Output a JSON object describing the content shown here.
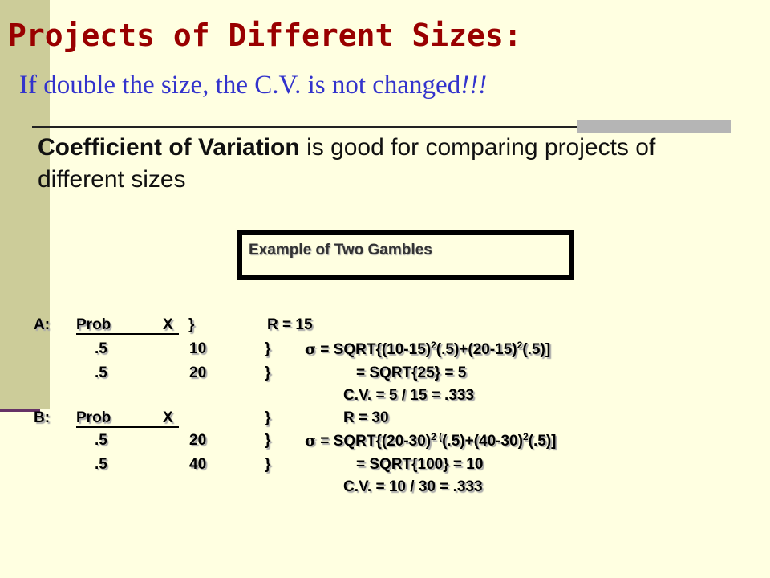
{
  "title": "Projects of Different Sizes:",
  "subtitle": {
    "text": "If double the size, the C.V. is not changed",
    "emphasis": "!!!"
  },
  "body": {
    "bold": "Coefficient of Variation",
    "rest": "is good for comparing projects of different sizes"
  },
  "box_label": "Example of Two Gambles",
  "gambles": [
    {
      "label": "A:",
      "header": {
        "prob": "Prob",
        "x": "X",
        "brace": "}",
        "result": "R = 15"
      },
      "outcomes": [
        {
          "prob": ".5",
          "x": "10",
          "brace": "}",
          "sigma": "σ",
          "formula": [
            "= SQRT{(10-15)",
            "2",
            "(.5)+(20-15)",
            "2",
            "(.5)]"
          ]
        },
        {
          "prob": ".5",
          "x": "20",
          "brace": "}",
          "formula": [
            "= SQRT{25} = 5"
          ]
        }
      ],
      "cv": "C.V. = 5 / 15 = .333"
    },
    {
      "label": "B:",
      "header": {
        "prob": "Prob",
        "x": "X",
        "brace": "}",
        "result": "R = 30"
      },
      "outcomes": [
        {
          "prob": ".5",
          "x": "20",
          "brace": "}",
          "sigma": "σ",
          "formula": [
            "= SQRT{(20-30)",
            "2 (",
            "(.5)+(40-30)",
            "2",
            "(.5)]"
          ]
        },
        {
          "prob": ".5",
          "x": "40",
          "brace": "}",
          "formula": [
            "= SQRT{100} = 10"
          ]
        }
      ],
      "cv": "C.V. = 10 / 30 = .333"
    }
  ]
}
